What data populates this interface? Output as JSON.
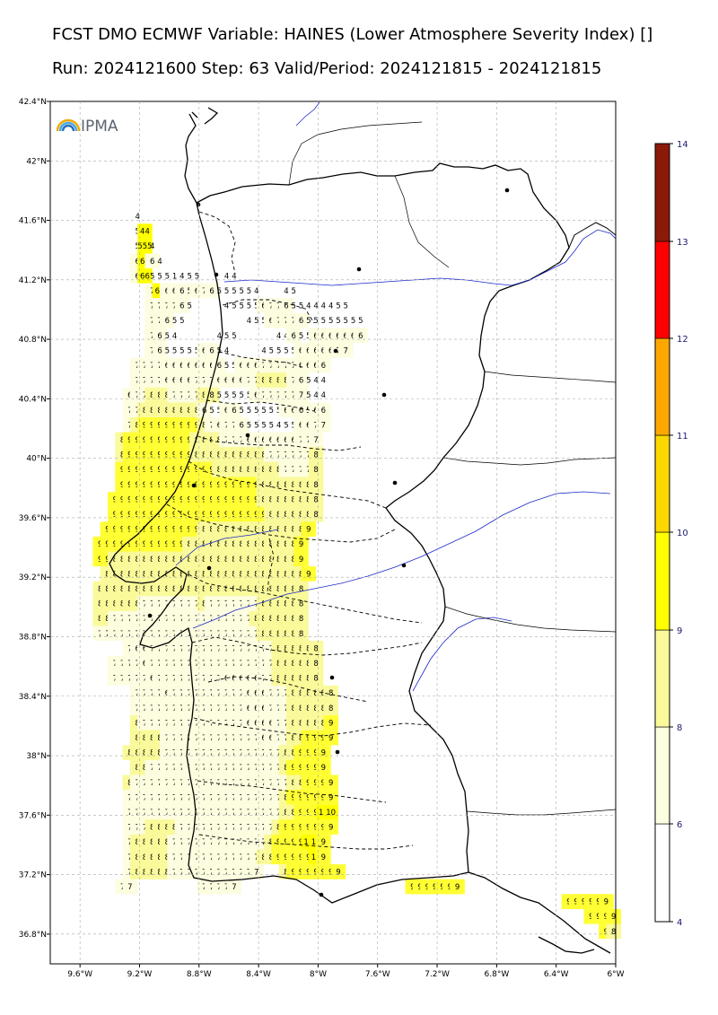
{
  "title_line1": "FCST DMO ECMWF Variable: HAINES (Lower Atmosphere Severity Index) []",
  "title_line2": "Run: 2024121600 Step: 63 Valid/Period: 2024121815 - 2024121815",
  "logo_text": "IPMA",
  "lat_labels": [
    "42.4°N",
    "42°N",
    "41.6°N",
    "41.2°N",
    "40.8°N",
    "40.4°N",
    "40°N",
    "39.6°N",
    "39.2°N",
    "38.8°N",
    "38.4°N",
    "38°N",
    "37.6°N",
    "37.2°N",
    "36.8°N"
  ],
  "lon_labels": [
    "9.6°W",
    "9.2°W",
    "8.8°W",
    "8.4°W",
    "8°W",
    "7.6°W",
    "7.2°W",
    "6.8°W",
    "6.4°W",
    "6°W"
  ],
  "colorbar": {
    "ticks": [
      "14",
      "13",
      "12",
      "11",
      "10",
      "9",
      "8",
      "6",
      "4"
    ],
    "colors": [
      "#ffffff",
      "#fdfde0",
      "#fafa9a",
      "#ffff00",
      "#fcd800",
      "#fca800",
      "#ff0000",
      "#8b1a0a"
    ]
  },
  "grid": {
    "lon_start": -9.0,
    "lat_start": 41.6,
    "step": 0.1,
    "rows": [
      "........4",
      "........5.44",
      "........5.555.4",
      "........6.66.6.4",
      "........6.66.5.5.5.1.4.5.5....4.4",
      "..........7.66.6.6.6.5.6.7.6.5.5.5.5.5.4....4.5",
      "..........7.7.7.7.6.5.....4.5.5.5.5.6.7.7.6.5.5.4.4.4.4.5.5",
      "..........7.7.6.5.5.........4.5.5.6.7.7.7.6.5.5.5.5.5.5.5.5",
      "..........7.6.5.4......4.5.5......4.4.6.5.5.6.6.6.6.6.6.6",
      "..........7.6.5.5.5.5.5.6.6.5.4.....4.5.5.5.5.6.6.6.6.6.7.7",
      "........7.7.7.7.6.6.6.6.6.6.6.6.5.5.6.6.6.7.7.7.7.7.6.6.6.6",
      "........7.7.7.7.6.6.6.6.7.7.7.6.6.6.6.7.7.8.8.8.8.7.6.5.4.4",
      ".......6.7.7.8.8.8.7.7.7.7.8.8.5.5.5.5.5.6.7.7.7.7.7.7.5.4.4",
      ".......7.7.8.8.8.8.8.8.8.8.6.5.5.6.6.5.5.5.5.5.5.6.6.6.5.6.6",
      ".......7.8.9.9.9.9.9.9.9.9.8.7.6.7.7.6.5.5.5.5.4.5.5.6.6.7.7",
      "......8.9.9.9.9.9.9.9.9.9.8.8.8.8.7.7.7.6.6.6.6.6.6.6.7.7.7",
      "......8.9.9.9.9.9.9.9.9.9.8.8.8.8.8.8.8.8.8.8.7.7.7.7.7.7.8",
      "......9.9.9.9.9.9.9.9.9.9.9.9.9.8.8.8.8.8.8.8.8.8.7.7.7.7.8",
      "......9.9.9.9.9.9.9.9.9.9.9.9.9.9.9.9.9.9.9.8.8.8.8.8.8.8.8",
      ".....9.9.9.9.9.9.9.9.9.9.9.9.9.9.9.9.9.9.9.9.8.8.8.8.8.8.8.8",
      ".....9.9.9.9.9.9.9.9.9.9.9.9.9.9.9.9.9.9.9.9.9.8.8.8.8.8.8.8",
      "....9.9.9.9.9.9.9.9.9.9.9.9.9.8.8.8.8.8.8.8.8.8.8.8.8.8.8.9",
      "...9.9.9.9.9.9.9.9.9.9.9.9.8.8.8.8.8.8.8.8.8.8.8.8.8.8.8.9",
      "...9.9.8.8.8.8.8.8.8.8.8.8.8.8.8.8.8.8.8.8.8.8.8.8.8.8.8.9",
      "....8.8.8.8.8.8.8.8.8.8.8.8.8.8.8.8.8.8.8.8.8.8.8.8.8.8.8.9",
      "...8.8.8.8.8.8.8.8.8.8.8.8.8.8.8.8.8.8.8.8.8.8.8.8.8.8.8.8",
      "...8.8.8.8.8.8.7.7.7.7.7.7.7.7.8.7.7.7.7.7.7.7.8.8.8.8.8.8",
      "...8.8.7.7.7.7.7.7.7.7.7.7.7.7.7.7.7.7.7.7.7.8.8.8.8.8.8.8",
      "...7.7.7.7.7.7.7.7.7.7.7.7.7.7.7.7.7.7.7.7.7.7.8.8.8.8.8.8",
      ".......7.6.6.7.7.7.7.7.7.7.7.7.7.7.7.7.7.7.7.7.8.8.8.8.8.8",
      ".....7.7.7.7.6.7.7.7.7.7.7.7.7.7.7.7.7.7.7.7.7.7.8.8.8.8.8.8",
      ".....7.7.7.7.7.6.7.7.7.7.7.7.7.7.7.6.6.6.6.6.7.7.8.8.8.8.8.8",
      "........7.7.7.7.6.7.7.7.7.7.7.7.7.7.7.6.6.6.7.7.7.8.8.8.8.8.8",
      "........7.7.7.7.7.7.7.7.7.7.7.7.7.7.7.6.6.6.7.7.7.8.8.8.8.8.8",
      "........8.7.7.7.7.7.7.7.7.7.7.7.7.7.7.6.6.6.6.7.7.8.8.8.8.8.9",
      "........8.8.8.8.7.7.7.7.7.7.7.7.7.7.7.7.7.6.6.7.7.8.8.9.9.9.9",
      ".......8.8.8.8.8.7.7.7.7.7.7.7.7.7.7.7.7.7.7.7.7.8.8.9.9.9.9",
      "........8.8.7.7.7.7.7.7.7.7.7.7.7.7.7.7.7.7.7.7.8.9.9.9.9.9",
      ".......8.7.7.7.7.7.7.7.7.7.7.7.7.7.7.7.7.7.7.7.7.7.8.8.9.9.9.9",
      ".......7.7.7.7.7.7.7.7.7.7.7.7.7.7.7.7.7.7.7.7.7.8.9.9.9.9.9.9",
      ".......7.7.7.7.7.7.7.7.7.7.7.7.7.7.7.7.7.7.7.7.7.8.8.9.9.9.10.10",
      ".......7.7.7.8.8.8.8.7.7.7.7.7.7.7.7.7.7.7.7.7.8.9.9.9.9.9.9.9",
      ".......7.8.8.8.8.8.7.7.7.7.7.7.7.7.7.7.7.7.7.8.9.9.9.9.10.10.9",
      ".......7.8.8.8.8.8.7.7.7.7.7.7.7.7.7.7.7.7.8.8.9.9.9.9.9.10.9",
      ".......7.8.8.8.8.8.7.7.7.7.7.7.7.7.7.7.7.7....8.9.9.9.9.9.9.9",
      "......7.7..........7.7.7.7.7........................9.9.9.9.9.9.9",
      "..................................................................9.9.9.9.9.9",
      ".....................................................................9.9.9.9.8",
      ".......................................................................9.8.8.7"
    ]
  }
}
